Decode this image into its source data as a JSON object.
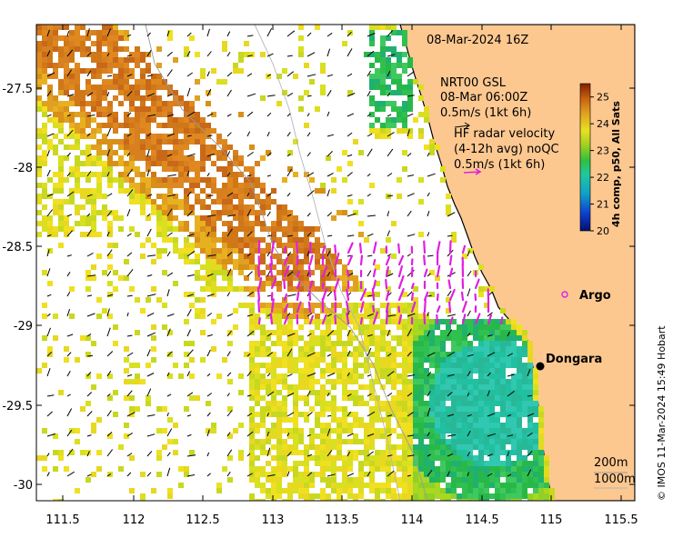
{
  "title": "08-Mar-2024 16Z",
  "info": {
    "model_line1": "NRT00 GSL",
    "model_line2": "08-Mar 06:00Z",
    "model_scale": "0.5m/s (1kt 6h)",
    "radar_line1": "HF radar velocity",
    "radar_line2": "(4-12h avg) noQC",
    "radar_scale": "0.5m/s (1kt 6h)"
  },
  "colorbar": {
    "label": "4h comp, p50, All Sats",
    "ticks": [
      "25",
      "24",
      "23",
      "22",
      "21",
      "20"
    ],
    "min": 20,
    "max": 25.5
  },
  "places": {
    "argo": "Argo",
    "dongara": "Dongara"
  },
  "depth_legend": {
    "d200": "200m",
    "d1000": "1000m"
  },
  "credit": "© IMOS 11-Mar-2024 15:49 Hobart",
  "axes": {
    "x_ticks": [
      "111.5",
      "112",
      "112.5",
      "113",
      "113.5",
      "114",
      "114.5",
      "115",
      "115.5"
    ],
    "y_ticks": [
      "-27.5",
      "-28",
      "-28.5",
      "-29",
      "-29.5",
      "-30"
    ]
  },
  "colors": {
    "land": "#fdc890",
    "radar_arrow": "#e020e0",
    "sst_warm": "#d07818",
    "sst_mid": "#e8d020",
    "sst_cool": "#30c050"
  }
}
